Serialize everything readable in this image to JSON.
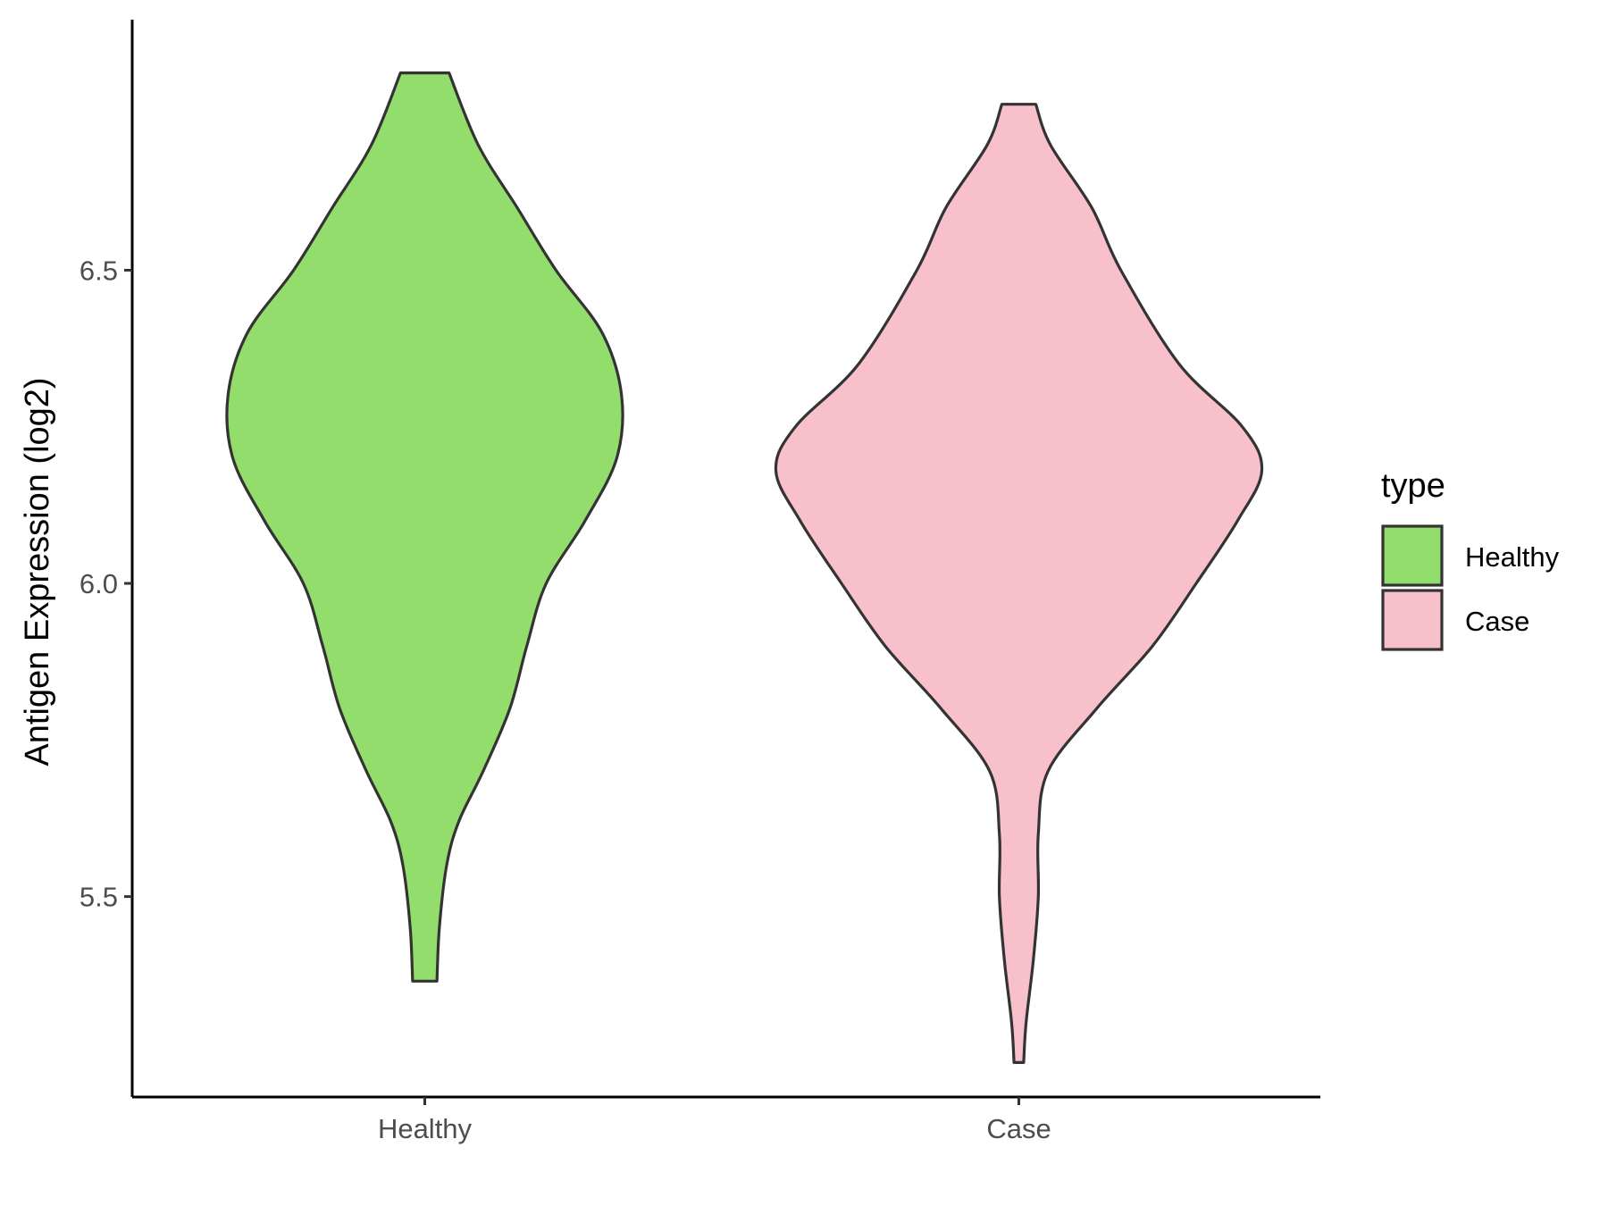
{
  "chart_data": {
    "type": "violin",
    "ylabel": "Antigen Expression (log2)",
    "xlabel": "",
    "categories": [
      "Healthy",
      "Case"
    ],
    "y_ticks": [
      "5.5",
      "6.0",
      "6.5"
    ],
    "y_tick_values": [
      5.5,
      6.0,
      6.5
    ],
    "ylim": [
      5.18,
      6.9
    ],
    "legend": {
      "title": "type",
      "position": "right",
      "items": [
        {
          "label": "Healthy",
          "color": "#92dd6b"
        },
        {
          "label": "Case",
          "color": "#f7c0cb"
        }
      ]
    },
    "grid": false,
    "series": [
      {
        "category": "Healthy",
        "color": "#92dd6b",
        "min": 5.365,
        "max": 6.815,
        "density_profile": [
          [
            5.365,
            0.05
          ],
          [
            5.45,
            0.06
          ],
          [
            5.55,
            0.09
          ],
          [
            5.62,
            0.14
          ],
          [
            5.7,
            0.24
          ],
          [
            5.8,
            0.35
          ],
          [
            5.9,
            0.42
          ],
          [
            6.0,
            0.5
          ],
          [
            6.1,
            0.66
          ],
          [
            6.2,
            0.79
          ],
          [
            6.3,
            0.81
          ],
          [
            6.4,
            0.73
          ],
          [
            6.5,
            0.54
          ],
          [
            6.6,
            0.38
          ],
          [
            6.7,
            0.22
          ],
          [
            6.815,
            0.1
          ]
        ]
      },
      {
        "category": "Case",
        "color": "#f7c0cb",
        "min": 5.235,
        "max": 6.765,
        "density_profile": [
          [
            5.235,
            0.02
          ],
          [
            5.3,
            0.03
          ],
          [
            5.4,
            0.06
          ],
          [
            5.5,
            0.08
          ],
          [
            5.6,
            0.08
          ],
          [
            5.7,
            0.12
          ],
          [
            5.8,
            0.32
          ],
          [
            5.9,
            0.55
          ],
          [
            6.0,
            0.73
          ],
          [
            6.1,
            0.9
          ],
          [
            6.18,
            1.0
          ],
          [
            6.25,
            0.92
          ],
          [
            6.35,
            0.66
          ],
          [
            6.5,
            0.42
          ],
          [
            6.6,
            0.3
          ],
          [
            6.7,
            0.13
          ],
          [
            6.765,
            0.07
          ]
        ]
      }
    ]
  }
}
